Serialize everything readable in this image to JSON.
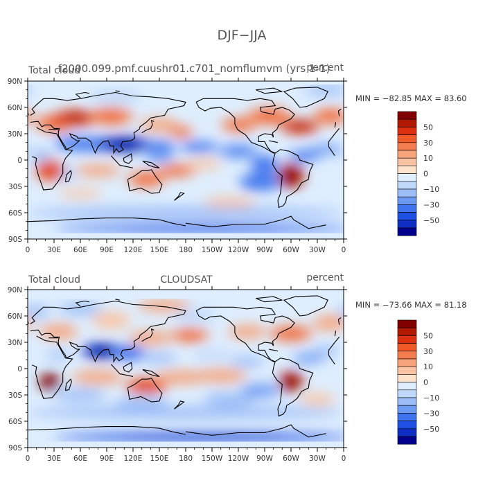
{
  "figure": {
    "title": "DJF−JJA"
  },
  "panels": [
    {
      "left_label": "Total cloud",
      "center_label": "f2000.099.pmf.cuushr01.c701_nomflumvm (yrs 1-1)",
      "units": "percent",
      "stats": "MIN = −82.85  MAX =  83.60",
      "min_value": -82.85,
      "max_value": 83.6
    },
    {
      "left_label": "Total cloud",
      "center_label": "CLOUDSAT",
      "units": "percent",
      "stats": "MIN = −73.66  MAX =  81.18",
      "min_value": -73.66,
      "max_value": 81.18
    }
  ],
  "axes": {
    "y_ticks": [
      "90N",
      "60N",
      "30N",
      "0",
      "30S",
      "60S",
      "90S"
    ],
    "x_ticks": [
      "0",
      "30E",
      "60E",
      "90E",
      "120E",
      "150E",
      "180",
      "150W",
      "120W",
      "90W",
      "60W",
      "30W",
      "0"
    ]
  },
  "colorbar": {
    "labels": [
      "50",
      "30",
      "10",
      "0",
      "−10",
      "−30",
      "−50"
    ],
    "colors": [
      "#800000",
      "#b01800",
      "#dc3010",
      "#f05a28",
      "#f57e50",
      "#f7a47c",
      "#fac4a4",
      "#fde2cc",
      "#deeefe",
      "#c0d8fa",
      "#9cbdf7",
      "#6d9bf3",
      "#3f74ee",
      "#1f4fe3",
      "#0f2ec4",
      "#00008c"
    ]
  },
  "chart_data": {
    "type": "heatmap",
    "title": "DJF−JJA",
    "variable": "Total cloud",
    "units": "percent",
    "colorbar_levels": [
      -70,
      -60,
      -50,
      -40,
      -30,
      -20,
      -10,
      0,
      10,
      20,
      30,
      40,
      50,
      60,
      70
    ],
    "x_range": [
      0,
      360
    ],
    "y_range": [
      -90,
      90
    ],
    "panels": [
      {
        "label": "f2000.099.pmf.cuushr01.c701_nomflumvm (yrs 1-1)",
        "min": -82.85,
        "max": 83.6
      },
      {
        "label": "CLOUDSAT",
        "min": -73.66,
        "max": 81.18
      }
    ]
  }
}
